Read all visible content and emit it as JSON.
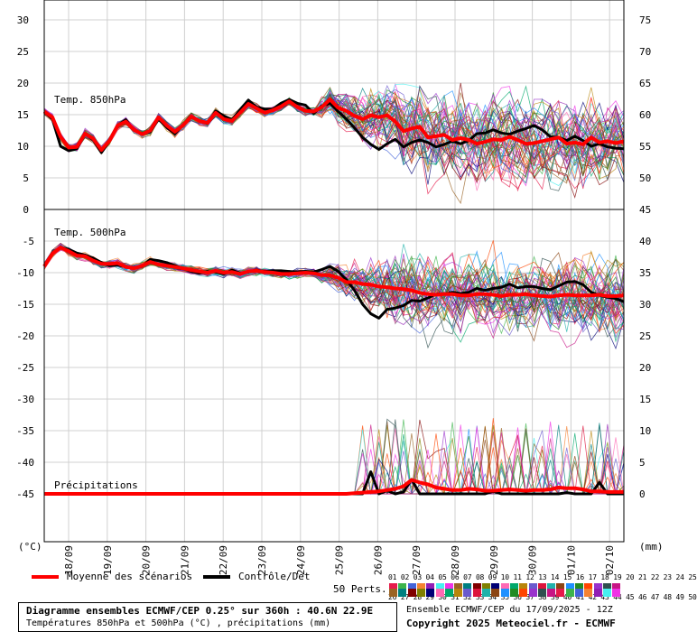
{
  "chart_data": {
    "type": "line",
    "panels": [
      {
        "label": "Temp. 850hPa",
        "left_ticks": [
          "30",
          "25",
          "20",
          "15",
          "10",
          "5",
          "0"
        ],
        "right_ticks": [
          "75",
          "70",
          "65",
          "60",
          "55",
          "50"
        ],
        "ylim": [
          0,
          32
        ],
        "control": [
          15.5,
          14.3,
          10.0,
          9.3,
          9.6,
          12.0,
          11.0,
          9.0,
          10.8,
          13.3,
          14.2,
          12.5,
          12.0,
          12.3,
          14.3,
          13.0,
          12.0,
          13.3,
          14.7,
          14.0,
          13.6,
          15.6,
          14.8,
          14.2,
          15.8,
          17.3,
          16.2,
          15.9,
          15.9,
          16.8,
          17.4,
          16.8,
          16.5,
          15.2,
          16.4,
          16.8,
          15.5,
          14.3,
          12.9,
          11.4,
          10.3,
          9.5,
          10.4,
          11.1,
          9.9,
          10.6,
          11.0,
          10.6,
          9.9,
          10.3,
          10.8,
          10.4,
          10.9,
          12.0,
          12.1,
          12.6,
          12.1,
          11.9,
          12.4,
          12.8,
          13.3,
          12.6,
          11.5,
          11.4,
          10.9,
          11.6,
          10.9,
          10.0,
          10.4,
          9.9,
          9.7,
          9.6
        ],
        "mean": [
          15.5,
          14.6,
          11.5,
          9.8,
          9.9,
          12.0,
          11.2,
          9.4,
          10.9,
          13.3,
          13.9,
          12.6,
          11.9,
          12.5,
          14.6,
          13.3,
          12.3,
          13.3,
          14.7,
          14.0,
          13.7,
          15.3,
          14.3,
          14.0,
          15.3,
          16.7,
          16.0,
          15.3,
          15.7,
          16.3,
          17.1,
          16.2,
          15.6,
          15.5,
          16.2,
          17.4,
          16.1,
          15.6,
          14.8,
          14.3,
          14.9,
          14.6,
          14.9,
          13.9,
          12.4,
          12.8,
          13.1,
          11.4,
          11.6,
          11.8,
          11.0,
          11.3,
          11.0,
          10.4,
          10.7,
          11.1,
          11.0,
          11.5,
          11.0,
          10.4,
          10.5,
          10.8,
          11.1,
          11.4,
          10.4,
          10.6,
          10.3,
          11.4,
          10.6,
          10.8,
          10.5,
          10.8
        ]
      },
      {
        "label": "Temp. 500hPa",
        "left_ticks": [
          "-5",
          "-10",
          "-15",
          "-20",
          "-25",
          "-30",
          "-35",
          "-40",
          "-45"
        ],
        "right_ticks": [
          "45",
          "40",
          "35",
          "30",
          "25",
          "20",
          "15",
          "10",
          "5",
          "0"
        ],
        "ylim": [
          -50,
          -2
        ],
        "control": [
          -9.0,
          -7.0,
          -6.0,
          -6.3,
          -6.9,
          -7.2,
          -7.7,
          -8.4,
          -8.9,
          -8.8,
          -9.1,
          -9.2,
          -9.0,
          -7.9,
          -8.1,
          -8.4,
          -8.9,
          -9.3,
          -9.8,
          -10.1,
          -9.8,
          -9.9,
          -10.2,
          -9.6,
          -10.1,
          -9.9,
          -9.6,
          -9.8,
          -9.7,
          -9.7,
          -9.8,
          -9.9,
          -9.8,
          -9.9,
          -9.5,
          -9.0,
          -9.8,
          -11.1,
          -12.8,
          -15.0,
          -16.5,
          -17.2,
          -15.8,
          -15.6,
          -15.2,
          -14.4,
          -14.5,
          -14.0,
          -13.4,
          -13.4,
          -13.1,
          -13.3,
          -13.1,
          -12.5,
          -12.8,
          -12.5,
          -12.3,
          -11.8,
          -12.4,
          -12.2,
          -12.2,
          -12.5,
          -12.7,
          -12.1,
          -11.5,
          -11.4,
          -11.9,
          -13.1,
          -13.6,
          -13.9,
          -14.1,
          -14.6
        ],
        "mean": [
          -9.0,
          -7.0,
          -6.0,
          -6.6,
          -7.3,
          -7.4,
          -8.1,
          -8.6,
          -8.6,
          -8.5,
          -9.1,
          -9.3,
          -8.9,
          -8.3,
          -8.7,
          -8.9,
          -9.1,
          -9.3,
          -9.6,
          -9.8,
          -10.0,
          -9.7,
          -10.0,
          -9.9,
          -10.2,
          -9.8,
          -9.7,
          -9.9,
          -10.0,
          -10.2,
          -10.2,
          -10.1,
          -10.0,
          -10.1,
          -10.4,
          -10.4,
          -10.8,
          -11.5,
          -11.5,
          -11.8,
          -11.9,
          -12.2,
          -12.3,
          -12.5,
          -12.6,
          -12.8,
          -13.2,
          -13.4,
          -13.5,
          -13.4,
          -13.4,
          -13.6,
          -13.6,
          -13.4,
          -13.4,
          -13.5,
          -13.7,
          -13.5,
          -13.5,
          -13.4,
          -13.6,
          -13.7,
          -13.8,
          -13.6,
          -13.5,
          -13.6,
          -13.6,
          -13.6,
          -13.5,
          -13.7,
          -13.7,
          -13.6
        ]
      }
    ],
    "precip_label": "Précipitations",
    "precip_control": [
      0,
      0,
      0,
      0,
      0,
      0,
      0,
      0,
      0,
      0,
      0,
      0,
      0,
      0,
      0,
      0,
      0,
      0,
      0,
      0,
      0,
      0,
      0,
      0,
      0,
      0,
      0,
      0,
      0,
      0,
      0,
      0,
      0,
      0,
      0,
      0,
      0,
      0,
      0,
      0,
      3.5,
      0,
      0.5,
      0,
      0.3,
      2.3,
      0,
      0,
      0,
      0,
      0,
      0,
      0,
      0,
      0,
      0.4,
      0,
      0,
      0,
      0,
      0,
      0,
      0,
      0,
      0.2,
      0,
      0,
      0,
      1.8,
      0,
      0,
      0
    ],
    "precip_mean": [
      0,
      0,
      0,
      0,
      0,
      0,
      0,
      0,
      0,
      0,
      0,
      0,
      0,
      0,
      0,
      0,
      0,
      0,
      0,
      0,
      0,
      0,
      0,
      0,
      0,
      0,
      0,
      0,
      0,
      0,
      0,
      0,
      0,
      0,
      0,
      0,
      0,
      0,
      0.1,
      0.2,
      0.3,
      0.4,
      0.6,
      0.8,
      1.2,
      2.2,
      1.8,
      1.5,
      1.0,
      0.8,
      0.6,
      0.6,
      0.8,
      0.7,
      0.5,
      0.5,
      0.6,
      0.7,
      0.6,
      0.5,
      0.6,
      0.6,
      0.7,
      1.0,
      0.9,
      0.9,
      0.7,
      0.4,
      0.4,
      0.3,
      0.3,
      0.3
    ],
    "dates": [
      "18/09",
      "19/09",
      "20/09",
      "21/09",
      "22/09",
      "23/09",
      "24/09",
      "25/09",
      "26/09",
      "27/09",
      "28/09",
      "29/09",
      "30/09",
      "01/10",
      "02/10"
    ],
    "left_unit": "(°C)",
    "right_unit": "(mm)",
    "colors": {
      "mean": "#ff0000",
      "control": "#000000"
    }
  },
  "legend": {
    "mean_label": "Moyenne des scénarios",
    "control_label": "Contrôle/Det",
    "perts_label": "50 Perts.",
    "perts_row1": "01 02 03 04 05 06 07 08 09 10 11 12 13 14 15 16 17 18 19 20 21 22 23 24 25",
    "perts_row2": "26 27 28 29 30 31 32 33 34 35 36 37 38 39 40 41 42 43 44 45 46 47 48 49 50"
  },
  "caption": {
    "title": "Diagramme ensembles ECMWF/CEP 0.25° sur 360h : 40.6N 22.9E",
    "subtitle": "Températures 850hPa et 500hPa (°C) , précipitations (mm)",
    "run": "Ensemble ECMWF/CEP du 17/09/2025 - 12Z",
    "copyright": "Copyright 2025 Meteociel.fr - ECMWF"
  }
}
